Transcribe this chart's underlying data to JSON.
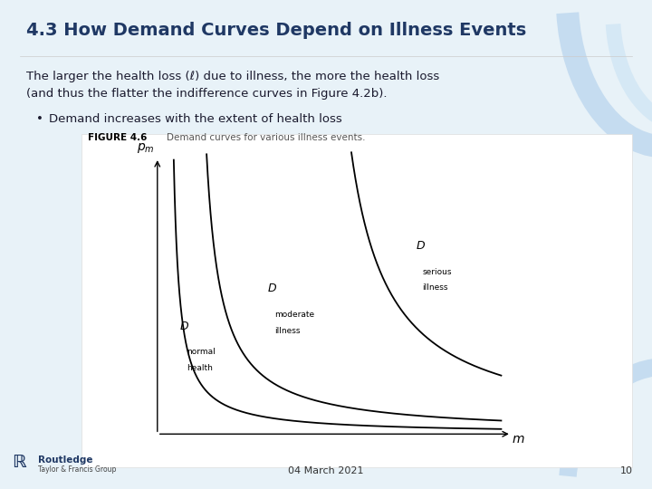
{
  "title": "4.3 How Demand Curves Depend on Illness Events",
  "title_color": "#1F3864",
  "title_fontsize": 14,
  "body_text_line1": "The larger the health loss (ℓ) due to illness, the more the health loss",
  "body_text_line2": "(and thus the flatter the indifference curves in Figure 4.2b).",
  "bullet_text": "Demand increases with the extent of health loss",
  "figure_label": "FIGURE 4.6",
  "figure_caption": "Demand curves for various illness events.",
  "bg_color": "#E8F2F8",
  "curve_color": "#000000",
  "text_color": "#1F3864",
  "body_color": "#1A1A2E",
  "footer_date": "04 March 2021",
  "footer_page": "10",
  "xlabel": "m",
  "ylabel": "p_m"
}
